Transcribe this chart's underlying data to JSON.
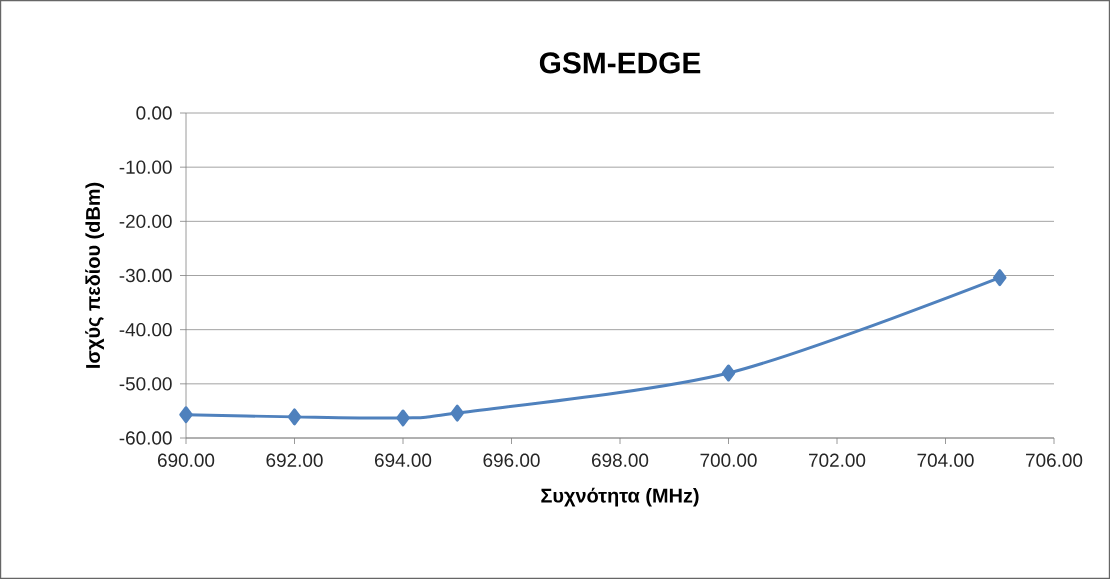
{
  "chart_data": {
    "type": "line",
    "title": "GSM-EDGE",
    "xlabel": "Συχνότητα (MHz)",
    "ylabel": "Ισχύς πεδίου (dBm)",
    "x": [
      690,
      692,
      694,
      695,
      700,
      705
    ],
    "series": [
      {
        "color": "#4f81bd",
        "values": [
          -55.7,
          -56.1,
          -56.3,
          -55.4,
          -48.0,
          -30.4
        ]
      }
    ],
    "xlim": [
      690,
      706
    ],
    "xticks": [
      {
        "value": 690,
        "label": "690.00"
      },
      {
        "value": 692,
        "label": "692.00"
      },
      {
        "value": 694,
        "label": "694.00"
      },
      {
        "value": 696,
        "label": "696.00"
      },
      {
        "value": 698,
        "label": "698.00"
      },
      {
        "value": 700,
        "label": "700.00"
      },
      {
        "value": 702,
        "label": "702.00"
      },
      {
        "value": 704,
        "label": "704.00"
      },
      {
        "value": 706,
        "label": "706.00"
      }
    ],
    "ylim": [
      -60,
      0
    ],
    "yticks": [
      {
        "value": -60,
        "label": "-60.00"
      },
      {
        "value": -50,
        "label": "-50.00"
      },
      {
        "value": -40,
        "label": "-40.00"
      },
      {
        "value": -30,
        "label": "-30.00"
      },
      {
        "value": -20,
        "label": "-20.00"
      },
      {
        "value": -10,
        "label": "-10.00"
      },
      {
        "value": 0,
        "label": "0.00"
      }
    ],
    "grid": "y",
    "marker": "diamond",
    "line_style": "solid"
  }
}
